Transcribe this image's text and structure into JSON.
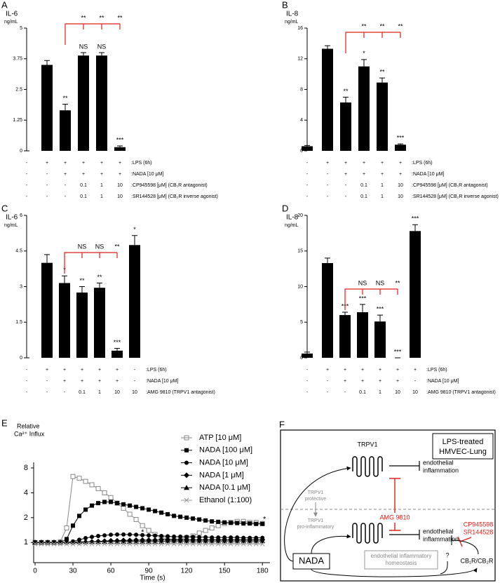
{
  "chart_data": [
    {
      "type": "bar",
      "panel": "A",
      "y_title": "IL-6",
      "y_unit": "ng/mL",
      "color": "#000000",
      "values": [
        0,
        3.5,
        1.65,
        3.88,
        3.88,
        0.15
      ],
      "errors": [
        0,
        0.18,
        0.25,
        0.12,
        0.12,
        0.05
      ],
      "significance": [
        null,
        null,
        "**",
        "NS",
        "NS",
        "***"
      ],
      "bracket_labels": [
        null,
        null,
        null,
        "**",
        "**",
        "**"
      ],
      "bracket_color": "#e0201b",
      "conditions": [
        {
          "label": ":LPS (6h)",
          "values": [
            "-",
            "+",
            "+",
            "+",
            "+",
            "+"
          ]
        },
        {
          "label": ":NADA [10 μM]",
          "values": [
            "-",
            "-",
            "+",
            "+",
            "+",
            "+"
          ]
        },
        {
          "label": ":CP945598 [μM] (CB₁R antagonist)",
          "values": [
            "-",
            "-",
            "-",
            0.1,
            1,
            10
          ]
        },
        {
          "label": ":SR144528 [μM] (CB₂R inverse agonist)",
          "values": [
            "-",
            "-",
            "-",
            0.1,
            1,
            10
          ]
        }
      ],
      "ylim": [
        0,
        5
      ],
      "yticks": [
        0,
        1.25,
        2.5,
        3.75,
        5
      ]
    },
    {
      "type": "bar",
      "panel": "B",
      "y_title": "IL-8",
      "y_unit": "ng/mL",
      "color": "#000000",
      "values": [
        0.6,
        13.3,
        6.3,
        11,
        8.9,
        0.8
      ],
      "errors": [
        0.1,
        0.4,
        0.7,
        0.9,
        0.6,
        0.1
      ],
      "significance": [
        null,
        null,
        "**",
        "*",
        "**",
        "***"
      ],
      "bracket_labels": [
        null,
        null,
        null,
        "**",
        "**",
        "**"
      ],
      "bracket_color": "#e0201b",
      "conditions": [
        {
          "label": ":LPS (6h)",
          "values": [
            "-",
            "+",
            "+",
            "+",
            "+",
            "+"
          ]
        },
        {
          "label": ":NADA [10 μM]",
          "values": [
            "-",
            "-",
            "+",
            "+",
            "+",
            "+"
          ]
        },
        {
          "label": ":CP945598 [μM] (CB₁R antagonist)",
          "values": [
            "-",
            "-",
            "-",
            0.1,
            1,
            10
          ]
        },
        {
          "label": ":SR144528 [μM] (CB₂R inverse agonist)",
          "values": [
            "-",
            "-",
            "-",
            0.1,
            1,
            10
          ]
        }
      ],
      "ylim": [
        0,
        16
      ],
      "yticks": [
        0,
        4,
        8,
        12,
        16
      ]
    },
    {
      "type": "bar",
      "panel": "C",
      "y_title": "IL-6",
      "y_unit": "ng/mL",
      "color": "#000000",
      "values": [
        0,
        4.0,
        3.15,
        2.75,
        2.95,
        0.3,
        4.75
      ],
      "errors": [
        0,
        0.35,
        0.3,
        0.25,
        0.2,
        0.1,
        0.4
      ],
      "significance": [
        null,
        null,
        "*",
        "**",
        "**",
        "***",
        "*"
      ],
      "bracket_labels": [
        null,
        null,
        null,
        "NS",
        "NS",
        "**",
        null
      ],
      "bracket_color": "#e0201b",
      "conditions": [
        {
          "label": ":LPS (6h)",
          "values": [
            "-",
            "+",
            "+",
            "+",
            "+",
            "+",
            "-"
          ]
        },
        {
          "label": ":NADA [10 μM]",
          "values": [
            "-",
            "-",
            "+",
            "+",
            "+",
            "+",
            "-"
          ]
        },
        {
          "label": ":AMG 9810 (TRPV1 antagonist)",
          "values": [
            "-",
            "-",
            "-",
            0.1,
            1,
            10,
            10
          ]
        }
      ],
      "ylim": [
        0,
        6
      ],
      "yticks": [
        0,
        1.5,
        3,
        4.5,
        6
      ]
    },
    {
      "type": "bar",
      "panel": "D",
      "y_title": "IL-8",
      "y_unit": "ng/mL",
      "color": "#000000",
      "values": [
        0.6,
        13.3,
        6.0,
        6.4,
        5.1,
        0,
        17.8
      ],
      "errors": [
        0.2,
        0.7,
        0.4,
        1.1,
        0.9,
        0,
        0.9
      ],
      "significance": [
        null,
        null,
        "***",
        "***",
        "***",
        "***",
        "***"
      ],
      "bracket_labels": [
        null,
        null,
        null,
        "NS",
        "NS",
        "**",
        null
      ],
      "bracket_color": "#e0201b",
      "conditions": [
        {
          "label": ":LPS (6h)",
          "values": [
            "-",
            "+",
            "+",
            "+",
            "+",
            "+",
            "+"
          ]
        },
        {
          "label": ":NADA [10 μM]",
          "values": [
            "-",
            "-",
            "+",
            "+",
            "+",
            "+",
            "-"
          ]
        },
        {
          "label": ":AMG 9810 (TRPV1 antagonist)",
          "values": [
            "-",
            "-",
            "-",
            0.1,
            1,
            10,
            10
          ]
        }
      ],
      "ylim": [
        0,
        20
      ],
      "yticks": [
        0,
        5,
        10,
        15,
        20
      ]
    },
    {
      "type": "line",
      "panel": "E",
      "y_title": "Relative",
      "y_unit": "Ca²⁺ Influx",
      "x_title": "Time (s)",
      "log_base": 2,
      "annotations": [
        "*",
        "*"
      ],
      "annotation_color": "#e0201b",
      "x": [
        0,
        5,
        10,
        15,
        20,
        25,
        30,
        35,
        40,
        45,
        50,
        55,
        60,
        65,
        70,
        75,
        80,
        85,
        90,
        95,
        100,
        105,
        110,
        115,
        120,
        125,
        130,
        135,
        140,
        145,
        150,
        155,
        160,
        165,
        170,
        175,
        180
      ],
      "series": [
        {
          "name": "ATP [10 μM]",
          "color": "#888888",
          "marker": "square-open",
          "values": [
            1.0,
            1.0,
            1.0,
            1.0,
            1.02,
            1.5,
            6.3,
            6.0,
            5.5,
            5.0,
            4.5,
            4.0,
            3.5,
            3.0,
            2.6,
            2.2,
            1.9,
            1.6,
            1.4,
            1.25,
            1.15,
            1.1,
            1.08,
            1.1,
            1.15,
            1.2,
            1.3,
            1.4,
            1.5,
            1.6,
            1.7,
            1.75,
            1.8,
            1.8,
            1.75,
            1.75,
            1.7
          ]
        },
        {
          "name": "NADA [100 μM]",
          "color": "#000000",
          "marker": "square",
          "values": [
            1.0,
            1.0,
            1.0,
            1.0,
            1.0,
            1.1,
            1.6,
            2.1,
            2.5,
            2.8,
            3.0,
            3.1,
            3.1,
            3.0,
            2.9,
            2.8,
            2.7,
            2.6,
            2.5,
            2.4,
            2.3,
            2.2,
            2.1,
            2.05,
            2.0,
            1.95,
            1.9,
            1.85,
            1.8,
            1.78,
            1.75,
            1.73,
            1.72,
            1.7,
            1.7,
            1.68,
            1.68
          ]
        },
        {
          "name": "NADA [10 μM]",
          "color": "#000000",
          "marker": "circle",
          "values": [
            1.0,
            1.0,
            1.0,
            1.0,
            1.0,
            1.0,
            1.03,
            1.08,
            1.13,
            1.17,
            1.2,
            1.22,
            1.24,
            1.25,
            1.25,
            1.25,
            1.24,
            1.23,
            1.22,
            1.21,
            1.2,
            1.19,
            1.18,
            1.18,
            1.17,
            1.17,
            1.16,
            1.16,
            1.15,
            1.15,
            1.15,
            1.15,
            1.15,
            1.14,
            1.14,
            1.14,
            1.14
          ]
        },
        {
          "name": "NADA [1 μM]",
          "color": "#000000",
          "marker": "diamond",
          "values": [
            1.0,
            1.0,
            1.0,
            1.0,
            1.0,
            1.0,
            1.0,
            1.0,
            1.01,
            1.02,
            1.03,
            1.04,
            1.05,
            1.05,
            1.06,
            1.06,
            1.07,
            1.07,
            1.07,
            1.07,
            1.08,
            1.08,
            1.08,
            1.08,
            1.08,
            1.08,
            1.08,
            1.08,
            1.08,
            1.08,
            1.08,
            1.08,
            1.08,
            1.08,
            1.08,
            1.08,
            1.08
          ]
        },
        {
          "name": "NADA [0.1 μM]",
          "color": "#000000",
          "marker": "triangle",
          "values": [
            1.0,
            1.0,
            1.0,
            1.0,
            1.0,
            1.01,
            1.01,
            1.02,
            1.02,
            1.02,
            1.02,
            1.02,
            1.03,
            1.03,
            1.03,
            1.03,
            1.03,
            1.03,
            1.03,
            1.03,
            1.03,
            1.04,
            1.04,
            1.04,
            1.04,
            1.04,
            1.04,
            1.04,
            1.04,
            1.04,
            1.04,
            1.04,
            1.04,
            1.04,
            1.04,
            1.04,
            1.04
          ]
        },
        {
          "name": "Ethanol (1:100)",
          "color": "#999999",
          "marker": "x",
          "values": [
            0.96,
            0.96,
            0.96,
            0.96,
            0.96,
            0.96,
            0.96,
            0.96,
            0.96,
            0.96,
            0.96,
            0.96,
            0.96,
            0.96,
            0.96,
            0.96,
            0.96,
            0.96,
            0.96,
            0.96,
            0.96,
            0.96,
            0.96,
            0.96,
            0.96,
            0.96,
            0.96,
            0.96,
            0.96,
            0.96,
            0.96,
            0.96,
            0.96,
            0.96,
            0.96,
            0.96,
            0.96
          ]
        }
      ],
      "xlim": [
        0,
        186
      ],
      "xticks": [
        0,
        30,
        60,
        90,
        120,
        150,
        180
      ],
      "ylim": [
        0.57,
        8
      ],
      "yticks": [
        1,
        2,
        4,
        8
      ]
    }
  ],
  "diagram": {
    "panel": "F",
    "title": [
      "LPS-treated",
      "HMVEC-Lung"
    ],
    "receptor": "TRPV1",
    "outcome_top": [
      "endothelial",
      "inflammation"
    ],
    "state_protective": [
      "TRPV1",
      "protective"
    ],
    "state_proinflammatory": [
      "TRPV1",
      "pro-inflammatory"
    ],
    "inhibitor_trpv1": "AMG 9810",
    "inhibitors_cb": [
      "CP945598",
      "SR144528"
    ],
    "outcome_bottom": [
      "endothelial",
      "inflammation"
    ],
    "ligand": "NADA",
    "homeostasis": [
      "endothelial inflammatory",
      "homeostasis"
    ],
    "unknown": "?",
    "receptors_cb": "CB₁R/CB₂R"
  }
}
